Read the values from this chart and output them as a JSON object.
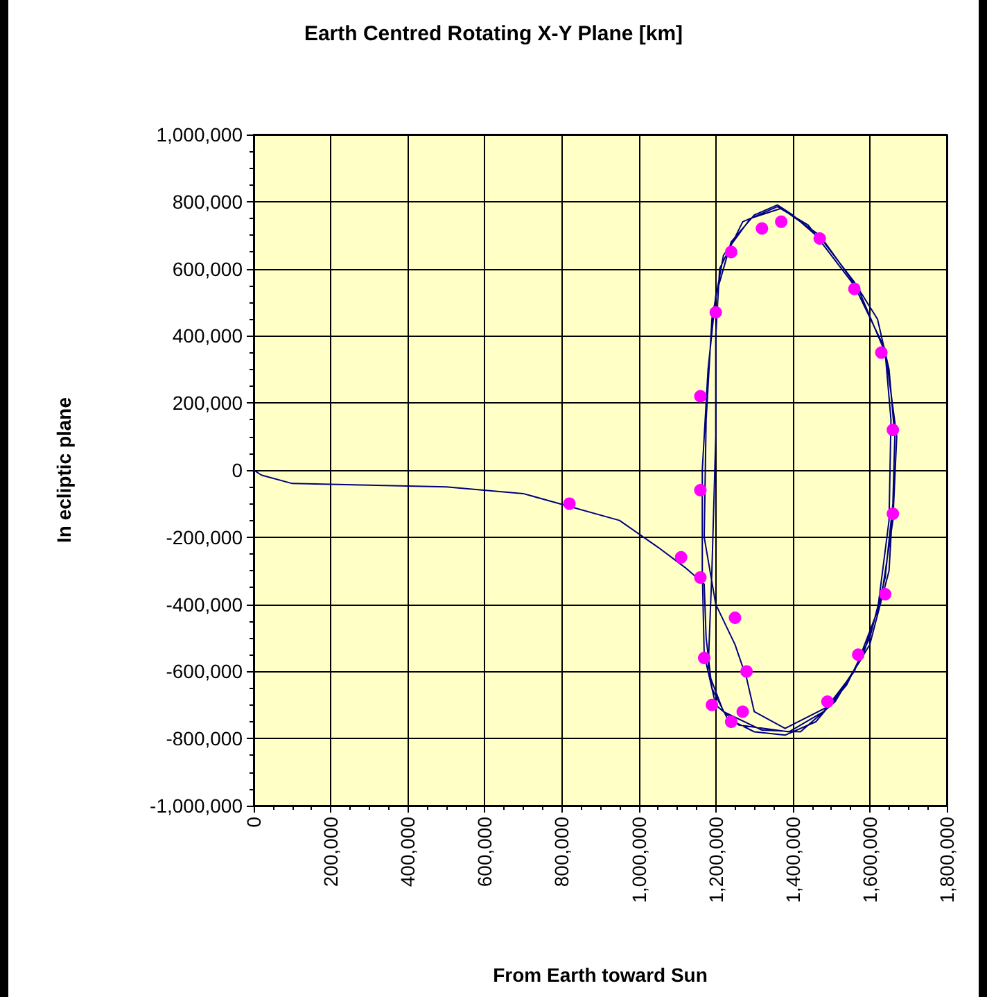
{
  "chart_data": {
    "type": "line",
    "title": "Earth Centred Rotating X-Y Plane [km]",
    "xlabel": "From Earth toward Sun",
    "ylabel": "In ecliptic plane",
    "xlim": [
      0,
      1800000
    ],
    "ylim": [
      -1000000,
      1000000
    ],
    "xticks": [
      {
        "value": 0,
        "label": "0"
      },
      {
        "value": 200000,
        "label": "200,000"
      },
      {
        "value": 400000,
        "label": "400,000"
      },
      {
        "value": 600000,
        "label": "600,000"
      },
      {
        "value": 800000,
        "label": "800,000"
      },
      {
        "value": 1000000,
        "label": "1,000,000"
      },
      {
        "value": 1200000,
        "label": "1,200,000"
      },
      {
        "value": 1400000,
        "label": "1,400,000"
      },
      {
        "value": 1600000,
        "label": "1,600,000"
      },
      {
        "value": 1800000,
        "label": "1,800,000"
      }
    ],
    "yticks": [
      {
        "value": -1000000,
        "label": "-1,000,000"
      },
      {
        "value": -800000,
        "label": "-800,000"
      },
      {
        "value": -600000,
        "label": "-600,000"
      },
      {
        "value": -400000,
        "label": "-400,000"
      },
      {
        "value": -200000,
        "label": "-200,000"
      },
      {
        "value": 0,
        "label": "0"
      },
      {
        "value": 200000,
        "label": "200,000"
      },
      {
        "value": 400000,
        "label": "400,000"
      },
      {
        "value": 600000,
        "label": "600,000"
      },
      {
        "value": 800000,
        "label": "800,000"
      },
      {
        "value": 1000000,
        "label": "1,000,000"
      }
    ],
    "grid": true,
    "series": [
      {
        "color": "#000080",
        "marker": "none",
        "line_style": "solid",
        "x": [
          0,
          20000,
          100000,
          300000,
          500000,
          700000,
          950000,
          1050000,
          1120000,
          1170000,
          1175000,
          1190000,
          1230000,
          1300000,
          1380000,
          1460000,
          1540000,
          1600000,
          1640000,
          1660000,
          1665000,
          1650000,
          1620000,
          1560000,
          1480000,
          1400000,
          1360000,
          1300000,
          1240000,
          1200000,
          1180000,
          1165000,
          1165000,
          1170000,
          1200000,
          1260000,
          1390000,
          1480000,
          1560000,
          1620000,
          1650000,
          1655000,
          1640000,
          1570000,
          1470000,
          1370000,
          1290000,
          1220000,
          1190000,
          1175000,
          1170000,
          1200000,
          1250000,
          1280000,
          1300000,
          1380000,
          1500000,
          1580000,
          1630000,
          1660000,
          1670000,
          1640000,
          1560000,
          1440000,
          1360000,
          1270000,
          1210000,
          1200000,
          1200000,
          1190000,
          1180000,
          1220000,
          1320000,
          1420000,
          1510000,
          1600000,
          1650000,
          1665000
        ],
        "values": [
          0,
          -15000,
          -40000,
          -45000,
          -50000,
          -70000,
          -150000,
          -230000,
          -290000,
          -340000,
          -500000,
          -650000,
          -740000,
          -780000,
          -790000,
          -750000,
          -640000,
          -500000,
          -320000,
          -100000,
          100000,
          300000,
          450000,
          560000,
          680000,
          760000,
          790000,
          760000,
          680000,
          520000,
          300000,
          0,
          -300000,
          -550000,
          -700000,
          -760000,
          -780000,
          -720000,
          -600000,
          -420000,
          -150000,
          150000,
          350000,
          540000,
          700000,
          780000,
          750000,
          640000,
          450000,
          150000,
          -200000,
          -400000,
          -520000,
          -620000,
          -720000,
          -770000,
          -700000,
          -560000,
          -380000,
          -150000,
          100000,
          360000,
          550000,
          730000,
          785000,
          740000,
          600000,
          400000,
          100000,
          -300000,
          -600000,
          -720000,
          -775000,
          -780000,
          -690000,
          -520000,
          -300000,
          0
        ]
      },
      {
        "type": "scatter",
        "color": "#ff00ff",
        "marker": "circle",
        "x": [
          820000,
          1110000,
          1160000,
          1250000,
          1170000,
          1280000,
          1190000,
          1270000,
          1240000,
          1490000,
          1570000,
          1640000,
          1660000,
          1660000,
          1630000,
          1560000,
          1470000,
          1370000,
          1320000,
          1240000,
          1200000,
          1160000,
          1160000
        ],
        "values": [
          -100000,
          -260000,
          -320000,
          -440000,
          -560000,
          -600000,
          -700000,
          -720000,
          -750000,
          -690000,
          -550000,
          -370000,
          -130000,
          120000,
          350000,
          540000,
          690000,
          740000,
          720000,
          650000,
          470000,
          220000,
          -60000
        ]
      }
    ]
  }
}
